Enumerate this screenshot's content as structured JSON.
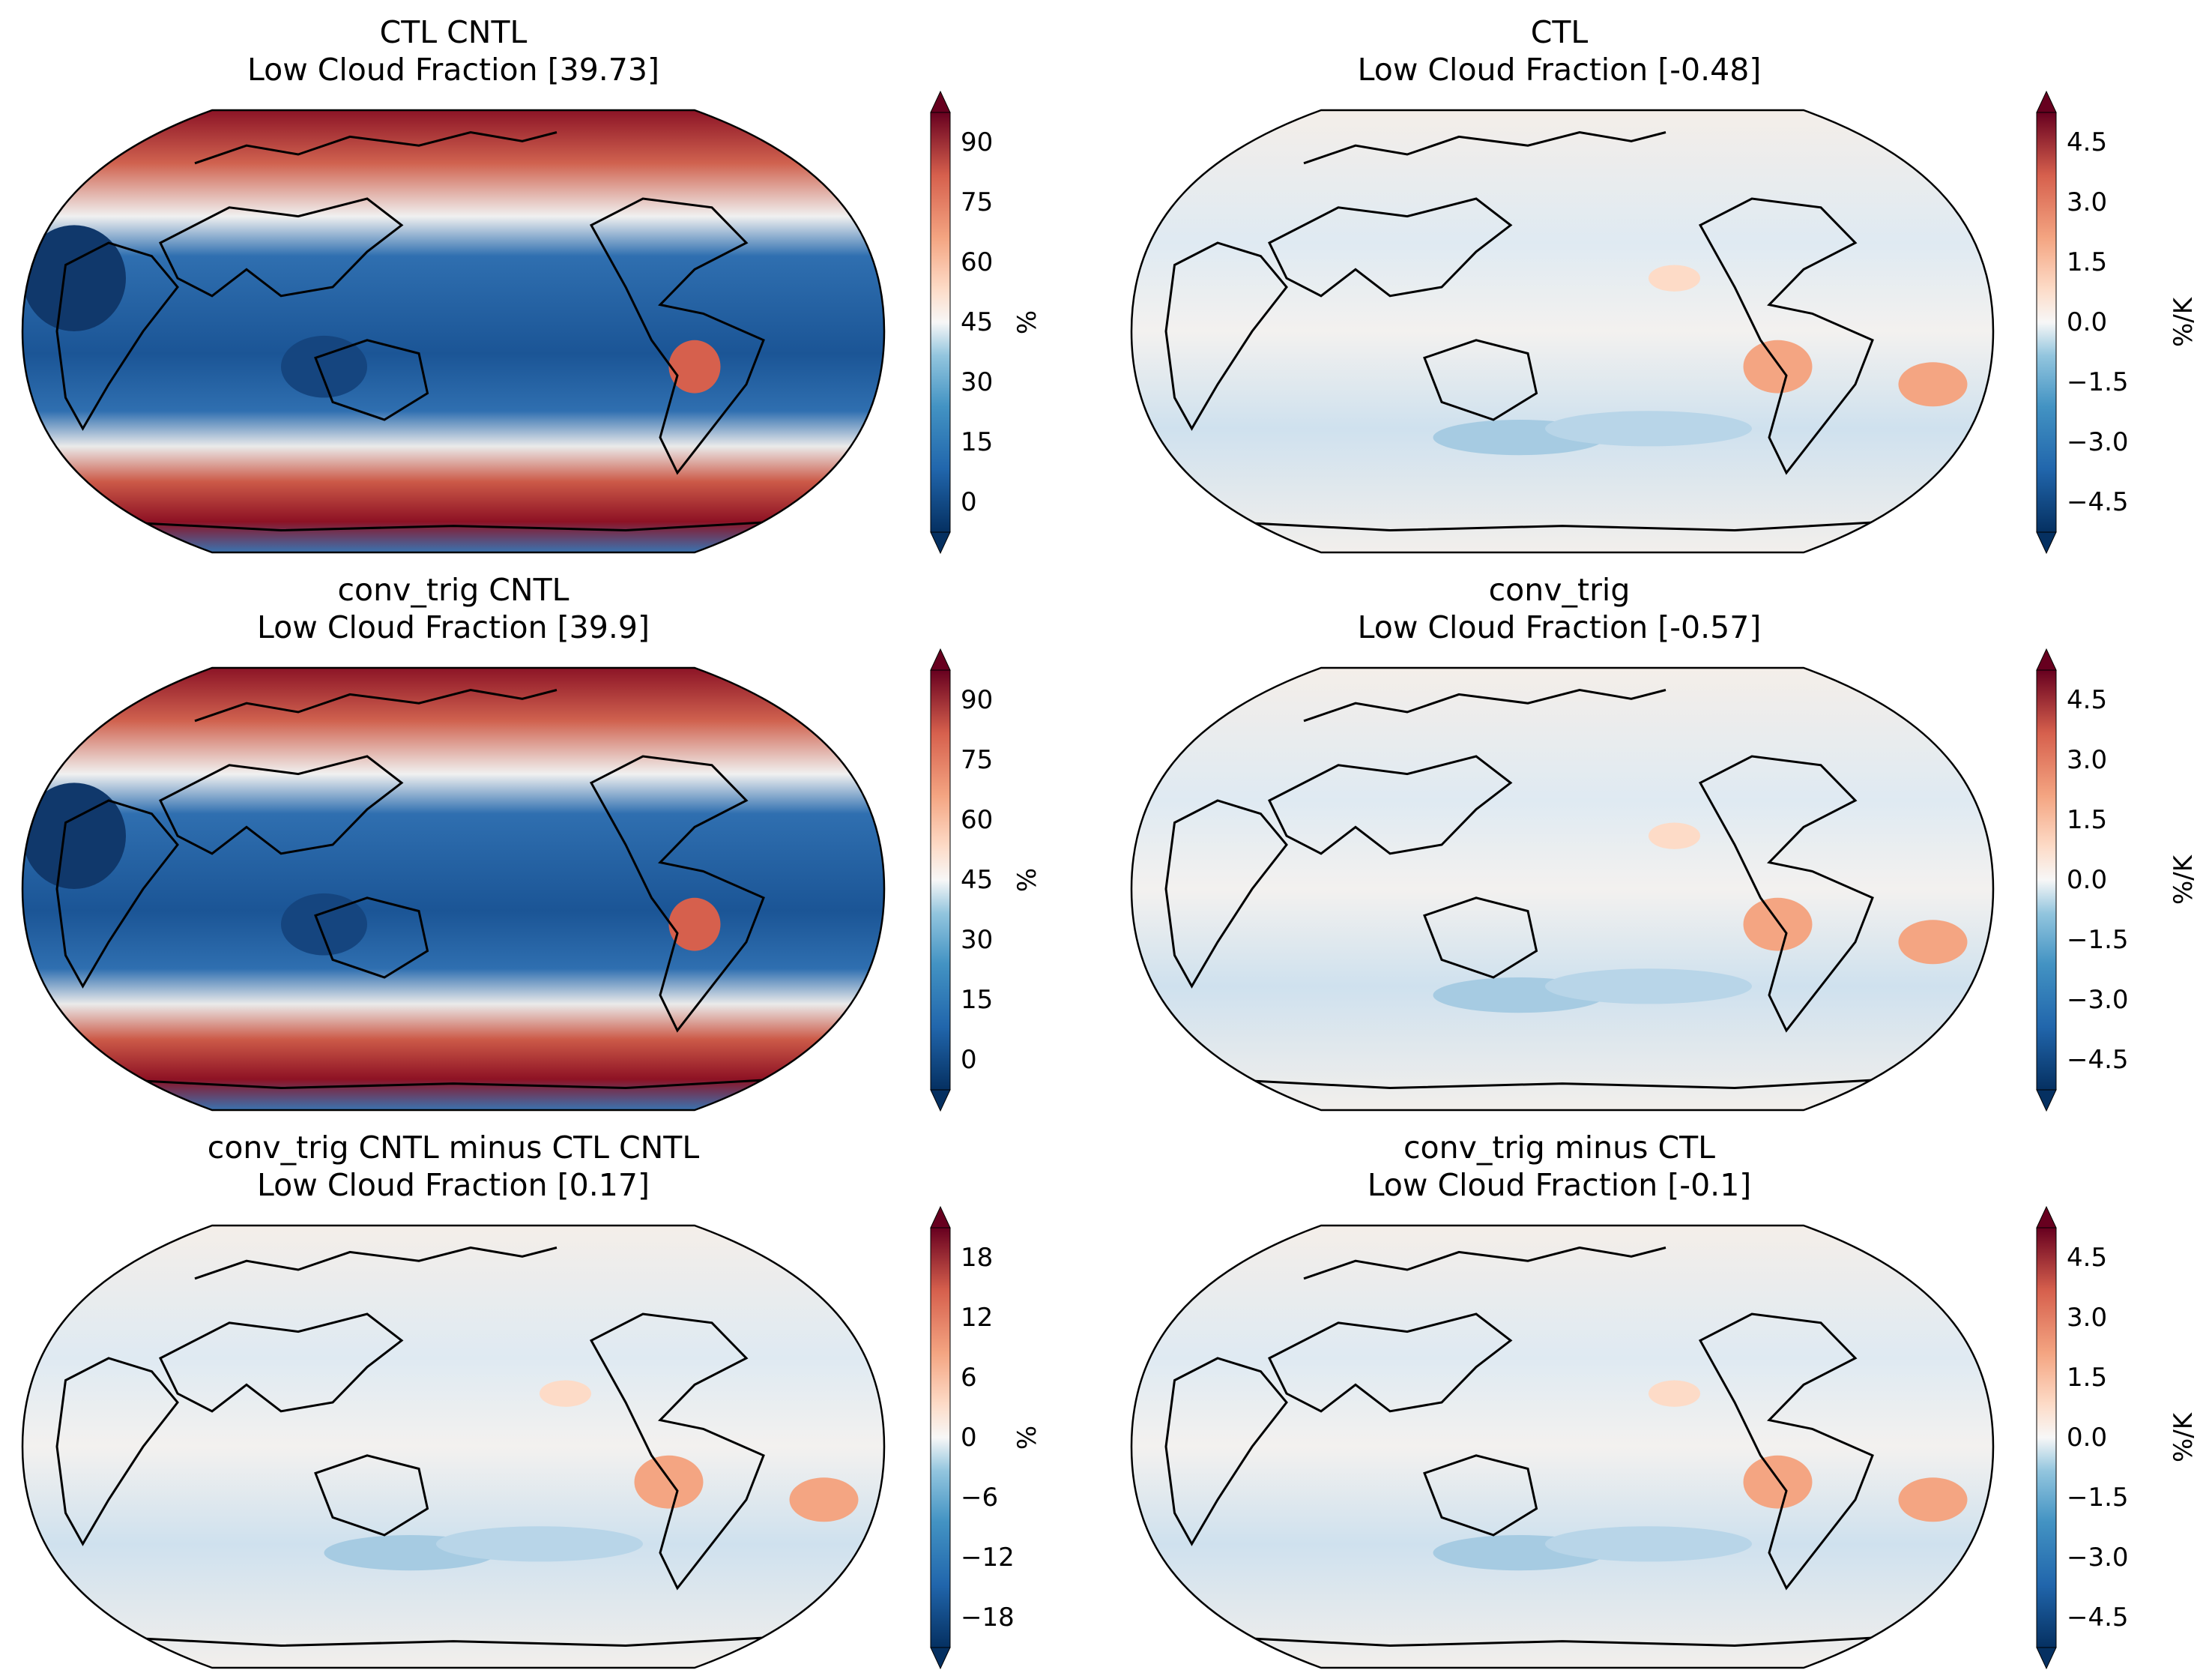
{
  "figure": {
    "title": "Low cloud fraction multi-panel figure",
    "colors": {
      "dark_blue": "#053061",
      "blue": "#2166ac",
      "light_blue": "#92c5de",
      "white": "#f7f7f7",
      "light_red": "#f4a582",
      "red": "#b2182b",
      "dark_red": "#67001f"
    }
  },
  "panels": [
    {
      "title_line1": "CTL CNTL",
      "title_line2": "Low Cloud Fraction [39.73]",
      "unit": "%",
      "ticks": [
        "90",
        "75",
        "60",
        "45",
        "30",
        "15",
        "0"
      ],
      "kind": "abs"
    },
    {
      "title_line1": "CTL",
      "title_line2": "Low Cloud Fraction [-0.48]",
      "unit": "%/K",
      "ticks": [
        "4.5",
        "3.0",
        "1.5",
        "0.0",
        "−1.5",
        "−3.0",
        "−4.5"
      ],
      "kind": "diff"
    },
    {
      "title_line1": "conv_trig CNTL",
      "title_line2": "Low Cloud Fraction [39.9]",
      "unit": "%",
      "ticks": [
        "90",
        "75",
        "60",
        "45",
        "30",
        "15",
        "0"
      ],
      "kind": "abs"
    },
    {
      "title_line1": "conv_trig",
      "title_line2": "Low Cloud Fraction [-0.57]",
      "unit": "%/K",
      "ticks": [
        "4.5",
        "3.0",
        "1.5",
        "0.0",
        "−1.5",
        "−3.0",
        "−4.5"
      ],
      "kind": "diff"
    },
    {
      "title_line1": "conv_trig CNTL minus CTL CNTL",
      "title_line2": "Low Cloud Fraction [0.17]",
      "unit": "%",
      "ticks": [
        "18",
        "12",
        "6",
        "0",
        "−6",
        "−12",
        "−18"
      ],
      "kind": "diff"
    },
    {
      "title_line1": "conv_trig minus CTL",
      "title_line2": "Low Cloud Fraction [-0.1]",
      "unit": "%/K",
      "ticks": [
        "4.5",
        "3.0",
        "1.5",
        "0.0",
        "−1.5",
        "−3.0",
        "−4.5"
      ],
      "kind": "diff"
    }
  ]
}
